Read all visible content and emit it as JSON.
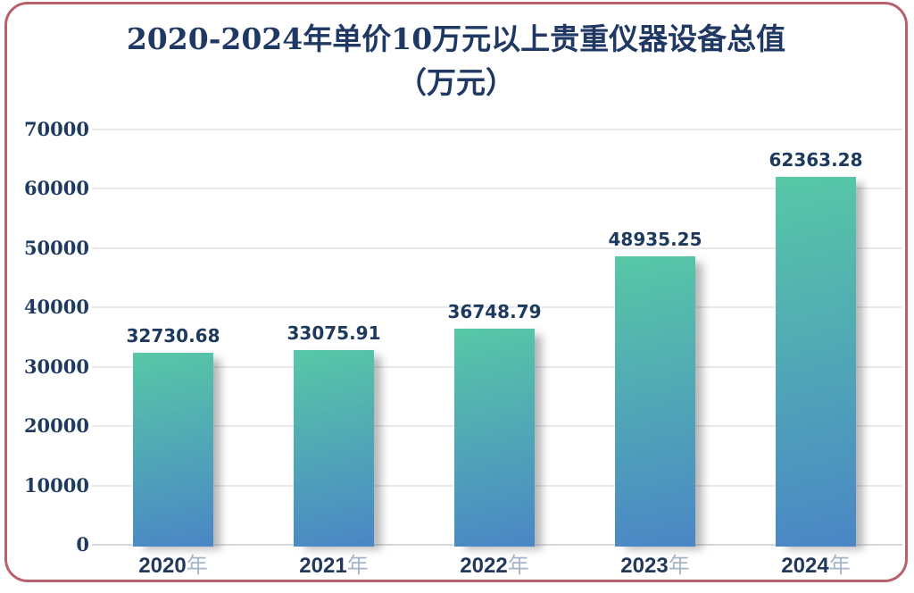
{
  "card": {
    "border_color": "#b8606d",
    "background": "#ffffff"
  },
  "chart_data": {
    "type": "bar",
    "title": "2020-2024年单价10万元以上贵重仪器设备总值",
    "subtitle": "（万元）",
    "title_color": "#1f3864",
    "categories": [
      "2020年",
      "2021年",
      "2022年",
      "2023年",
      "2024年"
    ],
    "category_years": [
      "2020",
      "2021",
      "2022",
      "2023",
      "2024"
    ],
    "category_suffix": "年",
    "values": [
      32730.68,
      33075.91,
      36748.79,
      48935.25,
      62363.28
    ],
    "value_labels": [
      "32730.68",
      "33075.91",
      "36748.79",
      "48935.25",
      "62363.28"
    ],
    "y_ticks": [
      0,
      10000,
      20000,
      30000,
      40000,
      50000,
      60000,
      70000
    ],
    "ylim": [
      0,
      70000
    ],
    "xlabel": "",
    "ylabel": "",
    "grid": true,
    "legend": "none",
    "bar_gradient_top": "#57c8a6",
    "bar_gradient_bottom": "#4a86c6",
    "value_label_color": "#1d3a5e",
    "axis_label_color": "#1e3a5f",
    "x_year_color": "#22395c",
    "x_suffix_color": "#a5b5c9",
    "gridline_color": "#e9e9e9",
    "axis_line_color": "#d4d9dd"
  }
}
